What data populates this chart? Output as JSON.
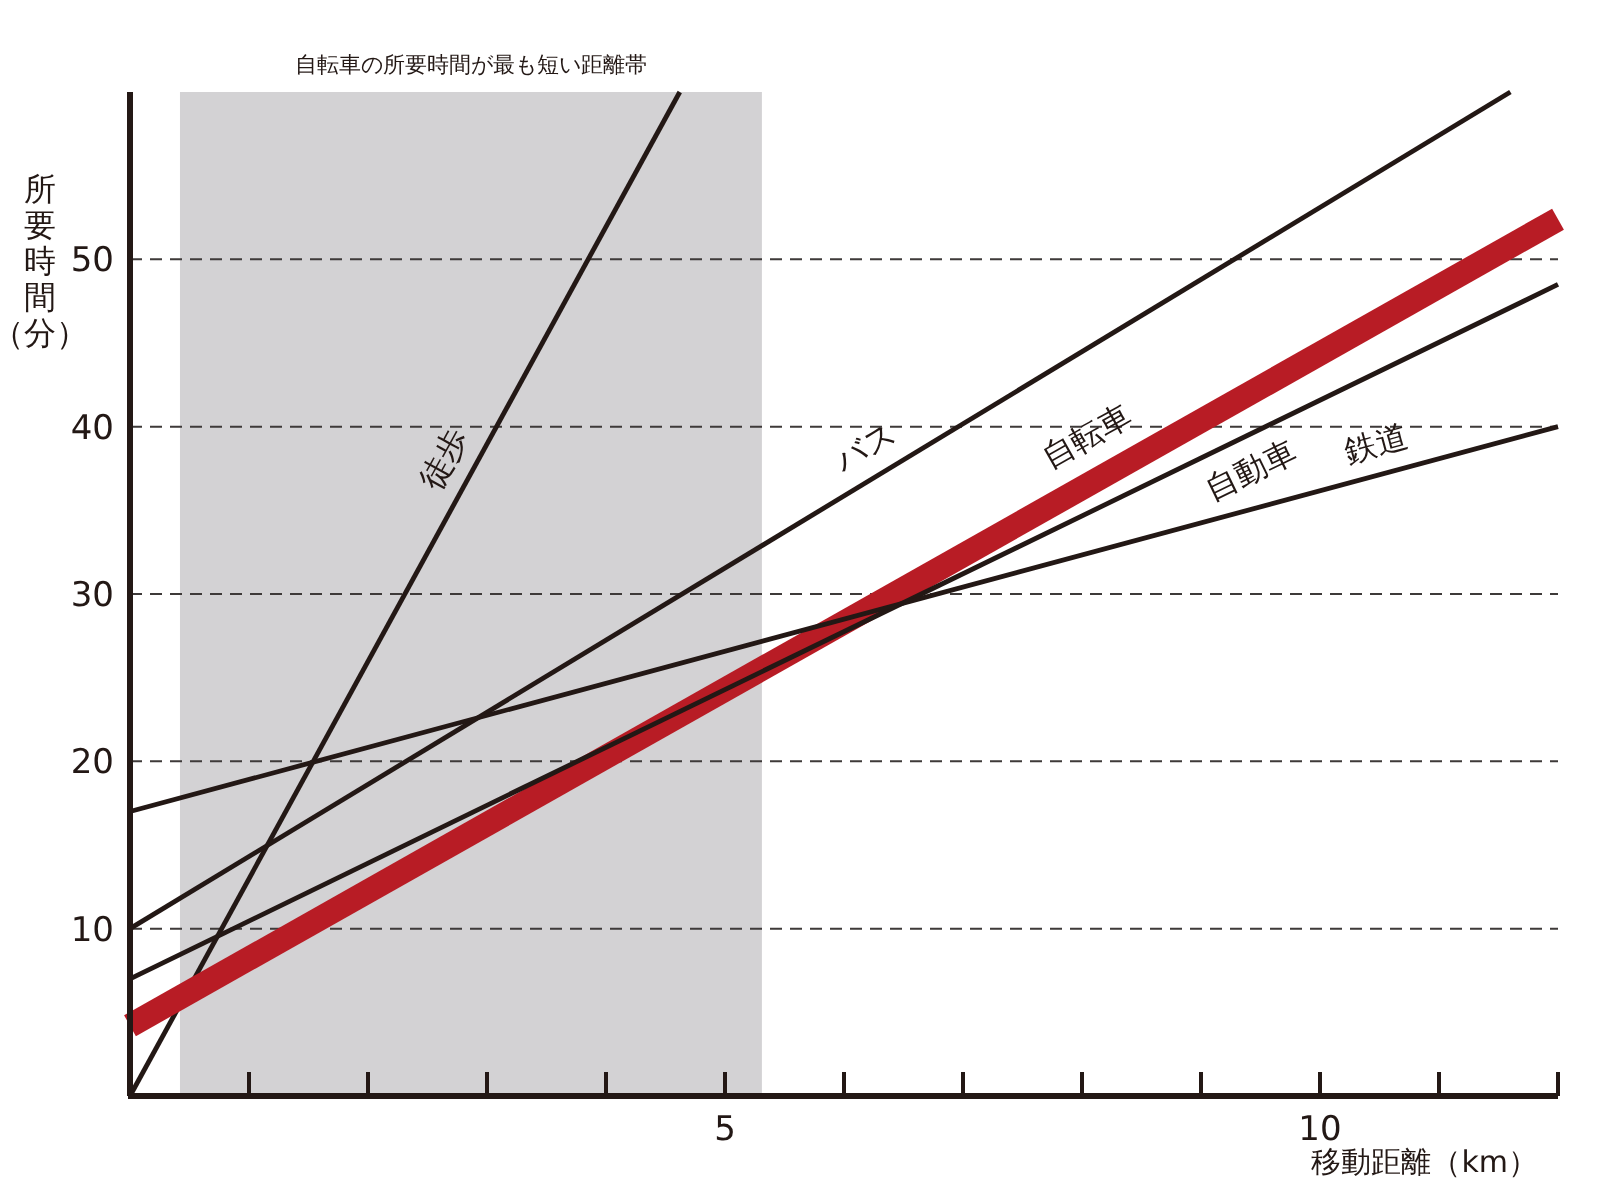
{
  "chart_data": {
    "type": "line",
    "xlabel": "移動距離（km）",
    "ylabel": "所要時間（分）",
    "xlim": [
      0,
      12
    ],
    "ylim": [
      0,
      60
    ],
    "xticks": [
      {
        "value": 1,
        "label": null
      },
      {
        "value": 2,
        "label": null
      },
      {
        "value": 3,
        "label": null
      },
      {
        "value": 4,
        "label": null
      },
      5,
      {
        "value": 6,
        "label": null
      },
      {
        "value": 7,
        "label": null
      },
      {
        "value": 8,
        "label": null
      },
      {
        "value": 9,
        "label": null
      },
      10,
      {
        "value": 11,
        "label": null
      },
      {
        "value": 12,
        "label": null
      }
    ],
    "yticks": [
      10,
      20,
      30,
      40,
      50
    ],
    "grid": "y",
    "bands": [
      {
        "axis": "x",
        "from": 0.42,
        "to": 5.31,
        "label": "自転車の所要時間が最も短い距離帯",
        "color": "#d3d2d4"
      }
    ],
    "series": [
      {
        "name": "徒歩",
        "color": "#231815",
        "x": [
          0,
          4.62
        ],
        "values": [
          0,
          60
        ]
      },
      {
        "name": "バス",
        "color": "#231815",
        "x": [
          0,
          11.6
        ],
        "values": [
          10,
          60
        ]
      },
      {
        "name": "自転車",
        "color": "#b81c25",
        "x": [
          0,
          12
        ],
        "values": [
          4.2,
          52.4
        ]
      },
      {
        "name": "自動車",
        "color": "#231815",
        "x": [
          0,
          12
        ],
        "values": [
          7,
          48.5
        ]
      },
      {
        "name": "鉄道",
        "color": "#231815",
        "x": [
          0,
          12
        ],
        "values": [
          17,
          40
        ]
      }
    ]
  }
}
